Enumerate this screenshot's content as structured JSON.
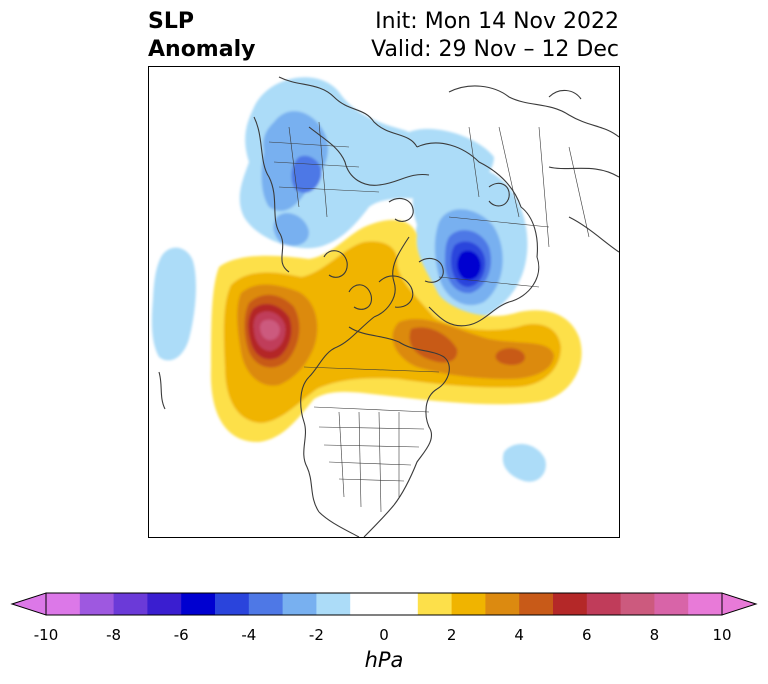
{
  "header": {
    "title_line1": "SLP",
    "title_line2": "Anomaly",
    "init": "Init: Mon 14 Nov 2022",
    "valid": "Valid: 29 Nov – 12 Dec"
  },
  "colorbar": {
    "unit": "hPa",
    "tick_labels": [
      "-10",
      "-8",
      "-6",
      "-4",
      "-2",
      "0",
      "2",
      "4",
      "6",
      "8",
      "10"
    ],
    "levels": [
      -10,
      -9,
      -8,
      -7,
      -6,
      -5,
      -4,
      -3,
      -2,
      -1,
      1,
      2,
      3,
      4,
      5,
      6,
      7,
      8,
      9,
      10
    ],
    "colors": [
      "#dc78e8",
      "#9e58e0",
      "#6b3ad8",
      "#3a1ed0",
      "#0000d0",
      "#2a44dc",
      "#4e78e6",
      "#78b0f0",
      "#acdcf8",
      "#ffffff",
      "#fde04a",
      "#f0b400",
      "#dc8a10",
      "#c85a18",
      "#b42828",
      "#c03c5a",
      "#cc5a7e",
      "#d864a8",
      "#e87ad8"
    ],
    "extend_low_color": "#dc78e8",
    "extend_high_color": "#e87ad8"
  },
  "map": {
    "projection": "north-polar stereographic",
    "features": [
      {
        "name": "alaska-high",
        "sign": "positive",
        "peak_hPa": 7
      },
      {
        "name": "canada-arctic-high",
        "sign": "positive",
        "peak_hPa": 5
      },
      {
        "name": "siberia-low",
        "sign": "negative",
        "peak_hPa": -7
      },
      {
        "name": "north-atlantic-low",
        "sign": "negative",
        "peak_hPa": -3
      },
      {
        "name": "pacific-low",
        "sign": "negative",
        "peak_hPa": -2
      },
      {
        "name": "western-atlantic-low",
        "sign": "negative",
        "peak_hPa": -2
      }
    ]
  }
}
